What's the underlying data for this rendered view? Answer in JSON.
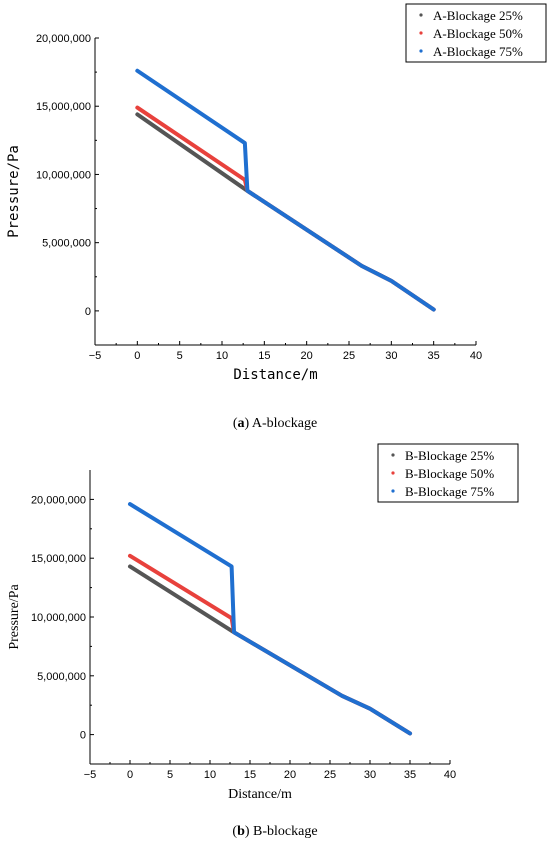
{
  "colors": {
    "s25": "#555555",
    "s50": "#e8413c",
    "s75": "#1f6fd0"
  },
  "chart_data": [
    {
      "type": "line",
      "xlabel": "Distance/m",
      "ylabel": "Pressure/Pa",
      "xlim": [
        -5,
        40
      ],
      "ylim": [
        -2500000,
        20000000
      ],
      "xticks": [
        -5,
        0,
        5,
        10,
        15,
        20,
        25,
        30,
        35,
        40
      ],
      "yticks": [
        0,
        5000000,
        10000000,
        15000000,
        20000000
      ],
      "ytick_labels": [
        "0",
        "5,000,000",
        "10,000,000",
        "15,000,000",
        "20,000,000"
      ],
      "xtick_labels": [
        "−5",
        "0",
        "5",
        "10",
        "15",
        "20",
        "25",
        "30",
        "35",
        "40"
      ],
      "legend_position": "top-right",
      "series": [
        {
          "name": "A-Blockage 25%",
          "x": [
            0,
            13,
            26.5,
            30,
            35
          ],
          "y": [
            14400000,
            8800000,
            3300000,
            2200000,
            100000
          ]
        },
        {
          "name": "A-Blockage 50%",
          "x": [
            0,
            12.7,
            13,
            26.5,
            30,
            35
          ],
          "y": [
            14900000,
            9600000,
            8800000,
            3300000,
            2200000,
            100000
          ]
        },
        {
          "name": "A-Blockage 75%",
          "x": [
            0,
            12.7,
            13,
            26.5,
            30,
            35
          ],
          "y": [
            17600000,
            12300000,
            8800000,
            3300000,
            2200000,
            100000
          ]
        }
      ],
      "caption_label": "a",
      "caption_text": "A-blockage"
    },
    {
      "type": "line",
      "xlabel": "Distance/m",
      "ylabel": "Pressure/Pa",
      "xlim": [
        -5,
        40
      ],
      "ylim": [
        -2500000,
        22500000
      ],
      "xticks": [
        -5,
        0,
        5,
        10,
        15,
        20,
        25,
        30,
        35,
        40
      ],
      "yticks": [
        0,
        5000000,
        10000000,
        15000000,
        20000000
      ],
      "ytick_labels": [
        "0",
        "5,000,000",
        "10,000,000",
        "15,000,000",
        "20,000,000"
      ],
      "xtick_labels": [
        "−5",
        "0",
        "5",
        "10",
        "15",
        "20",
        "25",
        "30",
        "35",
        "40"
      ],
      "legend_position": "top-right",
      "series": [
        {
          "name": "B-Blockage 25%",
          "x": [
            0,
            13,
            26.5,
            30,
            35
          ],
          "y": [
            14300000,
            8700000,
            3300000,
            2200000,
            100000
          ]
        },
        {
          "name": "B-Blockage 50%",
          "x": [
            0,
            12.7,
            13,
            26.5,
            30,
            35
          ],
          "y": [
            15200000,
            9900000,
            8700000,
            3300000,
            2200000,
            100000
          ]
        },
        {
          "name": "B-Blockage 75%",
          "x": [
            0,
            12.7,
            13,
            26.5,
            30,
            35
          ],
          "y": [
            19600000,
            14300000,
            8700000,
            3300000,
            2200000,
            100000
          ]
        }
      ],
      "caption_label": "b",
      "caption_text": "B-blockage"
    }
  ]
}
